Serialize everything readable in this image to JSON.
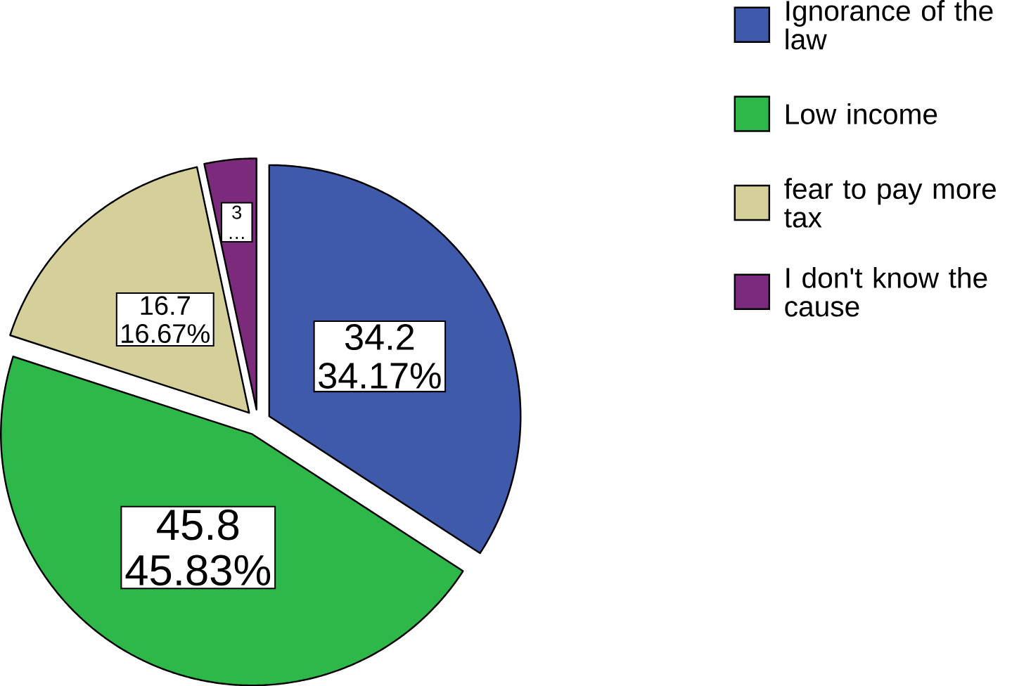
{
  "chart_data": {
    "type": "pie",
    "categories": [
      "Ignorance of the law",
      "Low income",
      "fear to pay more tax",
      "I don't know the cause"
    ],
    "values": [
      34.17,
      45.83,
      16.67,
      3.33
    ],
    "colors": [
      "#3f5aab",
      "#2fb84a",
      "#d5cf99",
      "#7b2a7c"
    ],
    "value_labels": [
      "34.2 34.17%",
      "45.8 45.83%",
      "16.7 16.67%",
      "3 …"
    ],
    "legend": "top right"
  }
}
